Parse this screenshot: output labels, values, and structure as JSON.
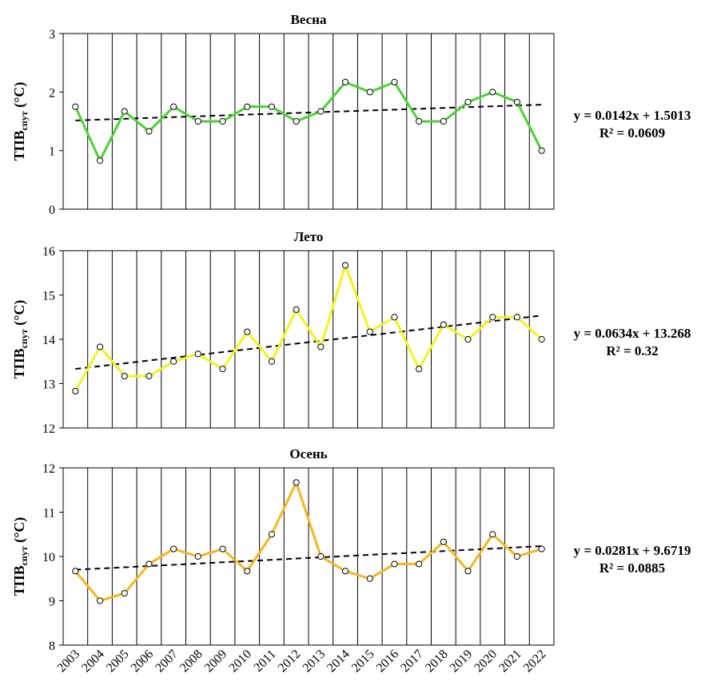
{
  "chart_data": [
    {
      "type": "line",
      "title": "Весна",
      "ylabel": {
        "main": "TПВ",
        "sub": "спут",
        "unit": " (°C)"
      },
      "ylim": [
        0,
        3
      ],
      "yticks": [
        "0",
        "1",
        "2",
        "3"
      ],
      "categories": [
        "2003",
        "2004",
        "2005",
        "2006",
        "2007",
        "2008",
        "2009",
        "2010",
        "2011",
        "2012",
        "2013",
        "2014",
        "2015",
        "2016",
        "2017",
        "2018",
        "2019",
        "2020",
        "2021",
        "2022"
      ],
      "series": [
        {
          "color": "#4cd137",
          "values": [
            1.75,
            0.83,
            1.67,
            1.33,
            1.75,
            1.5,
            1.5,
            1.75,
            1.75,
            1.5,
            1.67,
            2.17,
            2.0,
            2.17,
            1.5,
            1.5,
            1.83,
            2.0,
            1.83,
            1.0
          ]
        }
      ],
      "trendline": {
        "slope": 0.0142,
        "intercept": 1.5013,
        "equation": "y = 0.0142x + 1.5013",
        "r2": "R² = 0.0609"
      },
      "grid": "vertical"
    },
    {
      "type": "line",
      "title": "Лето",
      "ylabel": {
        "main": "TПВ",
        "sub": "спут",
        "unit": " (°C)"
      },
      "ylim": [
        12,
        16
      ],
      "yticks": [
        "12",
        "13",
        "14",
        "15",
        "16"
      ],
      "categories": [
        "2003",
        "2004",
        "2005",
        "2006",
        "2007",
        "2008",
        "2009",
        "2010",
        "2011",
        "2012",
        "2013",
        "2014",
        "2015",
        "2016",
        "2017",
        "2018",
        "2019",
        "2020",
        "2021",
        "2022"
      ],
      "series": [
        {
          "color": "#f5f21f",
          "values": [
            12.83,
            13.83,
            13.17,
            13.17,
            13.5,
            13.67,
            13.33,
            14.17,
            13.5,
            14.67,
            13.83,
            15.67,
            14.17,
            14.5,
            13.33,
            14.33,
            14.0,
            14.5,
            14.5,
            14.0
          ]
        }
      ],
      "trendline": {
        "slope": 0.0634,
        "intercept": 13.268,
        "equation": "y = 0.0634x + 13.268",
        "r2": "R² = 0.32"
      },
      "grid": "vertical"
    },
    {
      "type": "line",
      "title": "Осень",
      "ylabel": {
        "main": "TПВ",
        "sub": "спут",
        "unit": " (°C)"
      },
      "ylim": [
        8,
        12
      ],
      "yticks": [
        "8",
        "9",
        "10",
        "11",
        "12"
      ],
      "categories": [
        "2003",
        "2004",
        "2005",
        "2006",
        "2007",
        "2008",
        "2009",
        "2010",
        "2011",
        "2012",
        "2013",
        "2014",
        "2015",
        "2016",
        "2017",
        "2018",
        "2019",
        "2020",
        "2021",
        "2022"
      ],
      "series": [
        {
          "color": "#f5b61e",
          "values": [
            9.67,
            9.0,
            9.17,
            9.83,
            10.17,
            10.0,
            10.17,
            9.67,
            10.5,
            11.67,
            10.0,
            9.67,
            9.5,
            9.83,
            9.83,
            10.33,
            9.67,
            10.5,
            10.0,
            10.17
          ]
        }
      ],
      "trendline": {
        "slope": 0.0281,
        "intercept": 9.6719,
        "equation": "y = 0.0281x + 9.6719",
        "r2": "R² = 0.0885"
      },
      "grid": "vertical"
    }
  ]
}
